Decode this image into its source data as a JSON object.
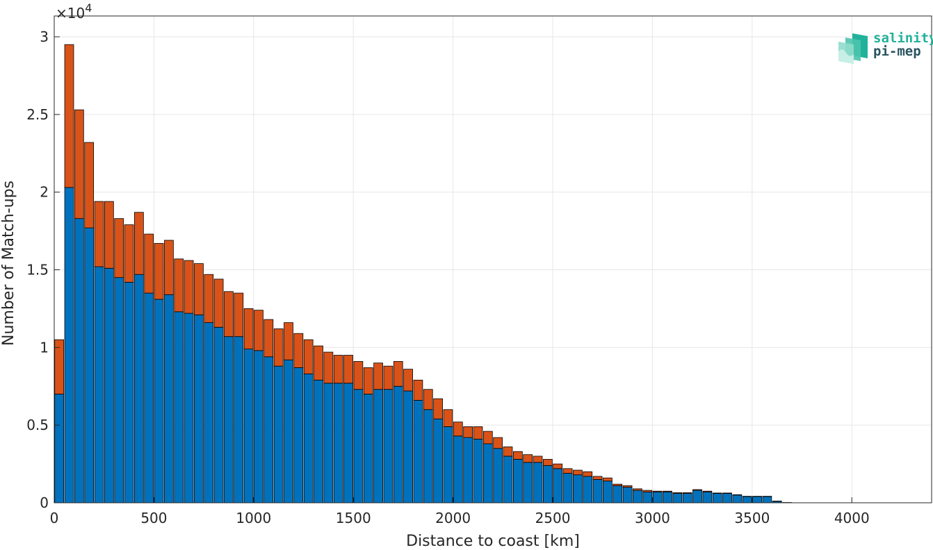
{
  "chart_data": {
    "type": "bar",
    "stacked": true,
    "xlabel": "Distance to coast [km]",
    "ylabel": "Number of Match-ups",
    "y_exponent_label": "×10",
    "y_exponent": "4",
    "xlim": [
      0,
      4400
    ],
    "ylim": [
      0,
      30000
    ],
    "xticks": [
      0,
      500,
      1000,
      1500,
      2000,
      2500,
      3000,
      3500,
      4000
    ],
    "xtick_labels": [
      "0",
      "500",
      "1000",
      "1500",
      "2000",
      "2500",
      "3000",
      "3500",
      "4000"
    ],
    "yticks": [
      0,
      5000,
      10000,
      15000,
      20000,
      25000,
      30000
    ],
    "ytick_labels": [
      "0",
      "0.5",
      "1",
      "1.5",
      "2",
      "2.5",
      "3"
    ],
    "grid": true,
    "bin_width_km": 50,
    "x": [
      25,
      75,
      125,
      175,
      225,
      275,
      325,
      375,
      425,
      475,
      525,
      575,
      625,
      675,
      725,
      775,
      825,
      875,
      925,
      975,
      1025,
      1075,
      1125,
      1175,
      1225,
      1275,
      1325,
      1375,
      1425,
      1475,
      1525,
      1575,
      1625,
      1675,
      1725,
      1775,
      1825,
      1875,
      1925,
      1975,
      2025,
      2075,
      2125,
      2175,
      2225,
      2275,
      2325,
      2375,
      2425,
      2475,
      2525,
      2575,
      2625,
      2675,
      2725,
      2775,
      2825,
      2875,
      2925,
      2975,
      3025,
      3075,
      3125,
      3175,
      3225,
      3275,
      3325,
      3375,
      3425,
      3475,
      3525,
      3575,
      3625,
      3675,
      3725
    ],
    "series": [
      {
        "color": "#0072bd",
        "values": [
          7000,
          20300,
          18300,
          17700,
          15200,
          15100,
          14500,
          14200,
          14700,
          13500,
          13100,
          13400,
          12300,
          12200,
          12100,
          11600,
          11300,
          10700,
          10700,
          9900,
          9800,
          9400,
          8800,
          9200,
          8700,
          8300,
          7900,
          7700,
          7700,
          7700,
          7300,
          7000,
          7300,
          7300,
          7500,
          7200,
          6600,
          6000,
          5400,
          4900,
          4300,
          4200,
          4100,
          3800,
          3500,
          3000,
          2800,
          2600,
          2600,
          2400,
          2200,
          1900,
          1800,
          1700,
          1500,
          1400,
          1100,
          1000,
          800,
          700,
          700,
          700,
          600,
          600,
          800,
          700,
          600,
          600,
          500,
          400,
          400,
          400,
          100,
          20,
          0
        ]
      },
      {
        "color": "#d95319",
        "values": [
          3500,
          9200,
          7000,
          5500,
          4200,
          4300,
          3800,
          3700,
          4000,
          3800,
          3600,
          3500,
          3400,
          3400,
          3300,
          3100,
          3100,
          2900,
          2800,
          2600,
          2600,
          2400,
          2400,
          2400,
          2200,
          2200,
          2200,
          2000,
          1800,
          1800,
          1800,
          1700,
          1700,
          1500,
          1600,
          1400,
          1300,
          1300,
          1300,
          1100,
          900,
          700,
          800,
          800,
          700,
          600,
          500,
          500,
          400,
          400,
          300,
          300,
          300,
          300,
          200,
          200,
          100,
          100,
          100,
          100,
          50,
          50,
          50,
          50,
          50,
          50,
          30,
          30,
          20,
          20,
          20,
          20,
          10,
          0,
          0
        ]
      }
    ]
  },
  "logo": {
    "line1": "salinity",
    "line2": "pi-mep"
  }
}
